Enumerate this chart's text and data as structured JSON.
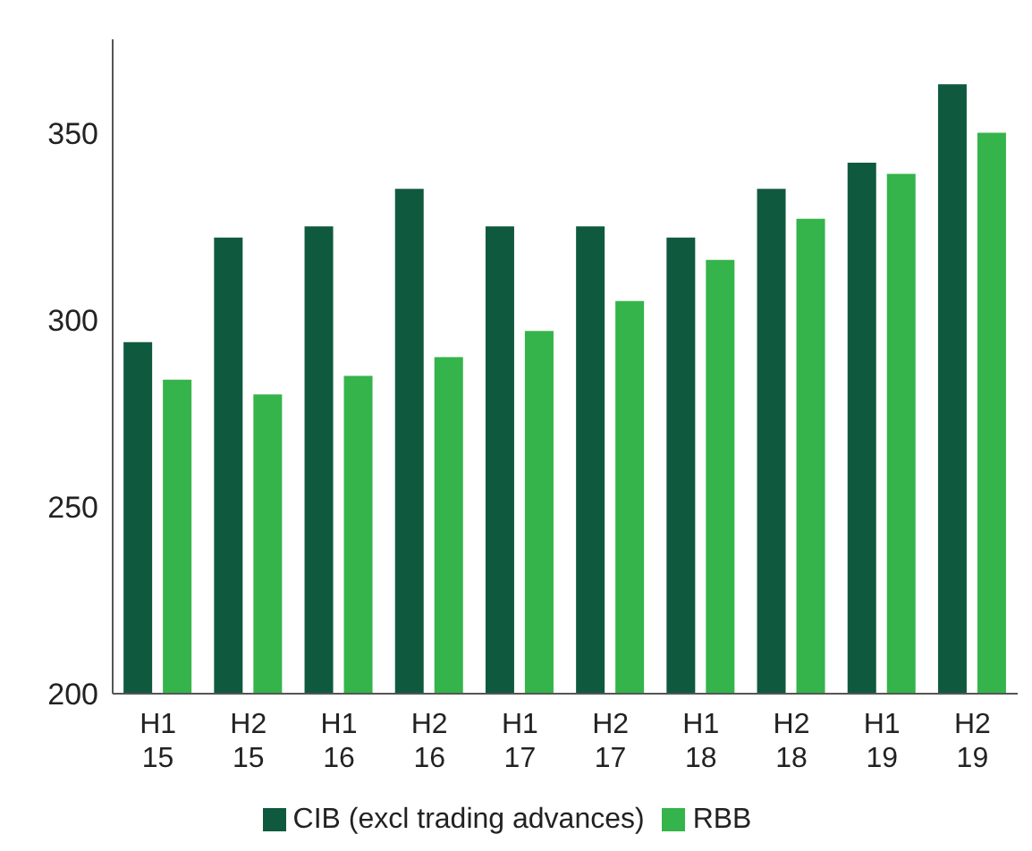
{
  "chart_data": {
    "type": "bar",
    "categories": [
      "H1\n15",
      "H2\n15",
      "H1\n16",
      "H2\n16",
      "H1\n17",
      "H2\n17",
      "H1\n18",
      "H2\n18",
      "H1\n19",
      "H2\n19"
    ],
    "series": [
      {
        "name": "CIB (excl trading advances)",
        "color": "#0f5a3f",
        "values": [
          294,
          322,
          325,
          335,
          325,
          325,
          322,
          335,
          342,
          363
        ]
      },
      {
        "name": "RBB",
        "color": "#34b44a",
        "values": [
          284,
          280,
          285,
          290,
          297,
          305,
          316,
          327,
          339,
          350
        ]
      }
    ],
    "ylim": [
      200,
      375
    ],
    "yticks": [
      200,
      250,
      300,
      350
    ],
    "grid": false,
    "legend": "bottom"
  }
}
